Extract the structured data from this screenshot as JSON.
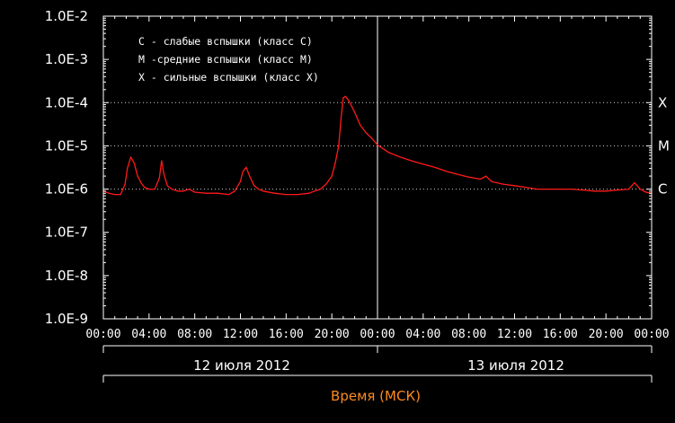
{
  "colors": {
    "background": "#000000",
    "axis": "#ffffff",
    "series": "#ff1a1a",
    "grid": "#cccccc",
    "xtitle": "#ff8a1c"
  },
  "legend": [
    "С - слабые вспышки (класс С)",
    "М -средние вспышки (класс М)",
    "Х - сильные вспышки (класс Х)"
  ],
  "chart_data": {
    "type": "line",
    "xlabel": "Время (МСК)",
    "y_scale": "log",
    "ylim": [
      1e-09,
      0.01
    ],
    "y_ticks": [
      "1.0E-2",
      "1.0E-3",
      "1.0E-4",
      "1.0E-5",
      "1.0E-6",
      "1.0E-7",
      "1.0E-8",
      "1.0E-9"
    ],
    "x_range_hours": [
      0,
      48
    ],
    "x_ticks": [
      "00:00",
      "04:00",
      "08:00",
      "12:00",
      "16:00",
      "20:00",
      "00:00",
      "04:00",
      "08:00",
      "12:00",
      "16:00",
      "20:00",
      "00:00"
    ],
    "days": [
      "12 июля 2012",
      "13 июля 2012"
    ],
    "day_divider_hour": 24,
    "class_lines": [
      {
        "label": "X",
        "value": 0.0001
      },
      {
        "label": "M",
        "value": 1e-05
      },
      {
        "label": "C",
        "value": 1e-06
      }
    ],
    "series": [
      {
        "x": [
          0,
          0.5,
          1,
          1.5,
          1.9,
          2.1,
          2.4,
          2.7,
          3.0,
          3.3,
          3.6,
          4.0,
          4.5,
          4.9,
          5.1,
          5.3,
          5.6,
          6.0,
          6.5,
          7.0,
          7.5,
          8.0,
          9.0,
          10.0,
          11.0,
          11.5,
          12.0,
          12.2,
          12.5,
          12.8,
          13.2,
          13.6,
          14.0,
          15.0,
          16.0,
          17.0,
          18.0,
          18.5,
          19.0,
          19.5,
          20.0,
          20.3,
          20.6,
          20.8,
          21.0,
          21.2,
          21.5,
          22.0,
          22.5,
          23.0,
          23.5,
          24.0,
          25.0,
          26.0,
          27.0,
          28.0,
          29.0,
          30.0,
          31.0,
          32.0,
          33.0,
          33.5,
          34.0,
          35.0,
          36.0,
          37.0,
          38.0,
          39.0,
          40.0,
          41.0,
          42.0,
          43.0,
          44.0,
          45.0,
          46.0,
          46.5,
          47.0,
          47.5,
          48.0
        ],
        "y": [
          9e-07,
          8e-07,
          7.5e-07,
          7.5e-07,
          1.3e-06,
          3e-06,
          5.5e-06,
          4e-06,
          2e-06,
          1.4e-06,
          1.1e-06,
          1e-06,
          1e-06,
          1.8e-06,
          4.5e-06,
          2.2e-06,
          1.2e-06,
          1e-06,
          9e-07,
          9e-07,
          1e-06,
          8.5e-07,
          8e-07,
          8e-07,
          7.5e-07,
          9e-07,
          1.5e-06,
          2.5e-06,
          3.2e-06,
          2e-06,
          1.2e-06,
          1e-06,
          9e-07,
          8e-07,
          7.5e-07,
          7.5e-07,
          8e-07,
          9e-07,
          1e-06,
          1.3e-06,
          2e-06,
          4e-06,
          1e-05,
          4e-05,
          0.00013,
          0.00014,
          0.00011,
          6e-05,
          3e-05,
          2e-05,
          1.5e-05,
          1.05e-05,
          7e-06,
          5.5e-06,
          4.5e-06,
          3.8e-06,
          3.2e-06,
          2.6e-06,
          2.2e-06,
          1.9e-06,
          1.7e-06,
          2e-06,
          1.5e-06,
          1.3e-06,
          1.2e-06,
          1.1e-06,
          1e-06,
          1e-06,
          1e-06,
          1e-06,
          9.5e-07,
          9e-07,
          9e-07,
          9.5e-07,
          1e-06,
          1.4e-06,
          1e-06,
          8.5e-07,
          8e-07
        ]
      }
    ]
  }
}
